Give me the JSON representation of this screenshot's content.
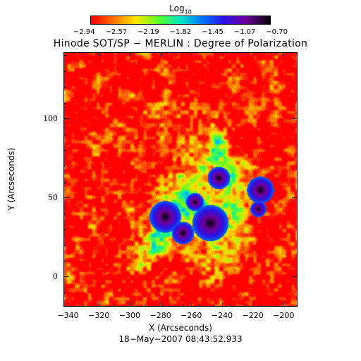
{
  "colorbar": {
    "title_main": "Log",
    "title_sub": "10",
    "tick_labels": [
      "−2.94",
      "−2.57",
      "−2.19",
      "−1.82",
      "−1.45",
      "−1.07",
      "−0.70"
    ],
    "range": [
      -2.94,
      -0.7
    ],
    "colormap": "rainbow: red → orange → yellow → green → cyan → blue → purple → black"
  },
  "figure": {
    "title": "Hinode SOT/SP − MERLIN : Degree of Polarization",
    "xlabel": "X (Arcseconds)",
    "ylabel": "Y (Arcseconds)",
    "date": "18−May−2007 08:43:52.933"
  },
  "axes": {
    "x_ticks": [
      "−340",
      "−320",
      "−300",
      "−280",
      "−260",
      "−240",
      "−220",
      "−200"
    ],
    "x_tick_values": [
      -340,
      -320,
      -300,
      -280,
      -260,
      -240,
      -220,
      -200
    ],
    "x_range": [
      -343,
      -191
    ],
    "y_ticks": [
      "0",
      "50",
      "100"
    ],
    "y_tick_values": [
      0,
      50,
      100
    ],
    "y_range": [
      -19,
      142
    ]
  },
  "image_content": {
    "description_colors": {
      "background_low": "#ff2000",
      "mid": "#00c0ff",
      "high": "#2000a0",
      "peak": "#100020"
    }
  }
}
